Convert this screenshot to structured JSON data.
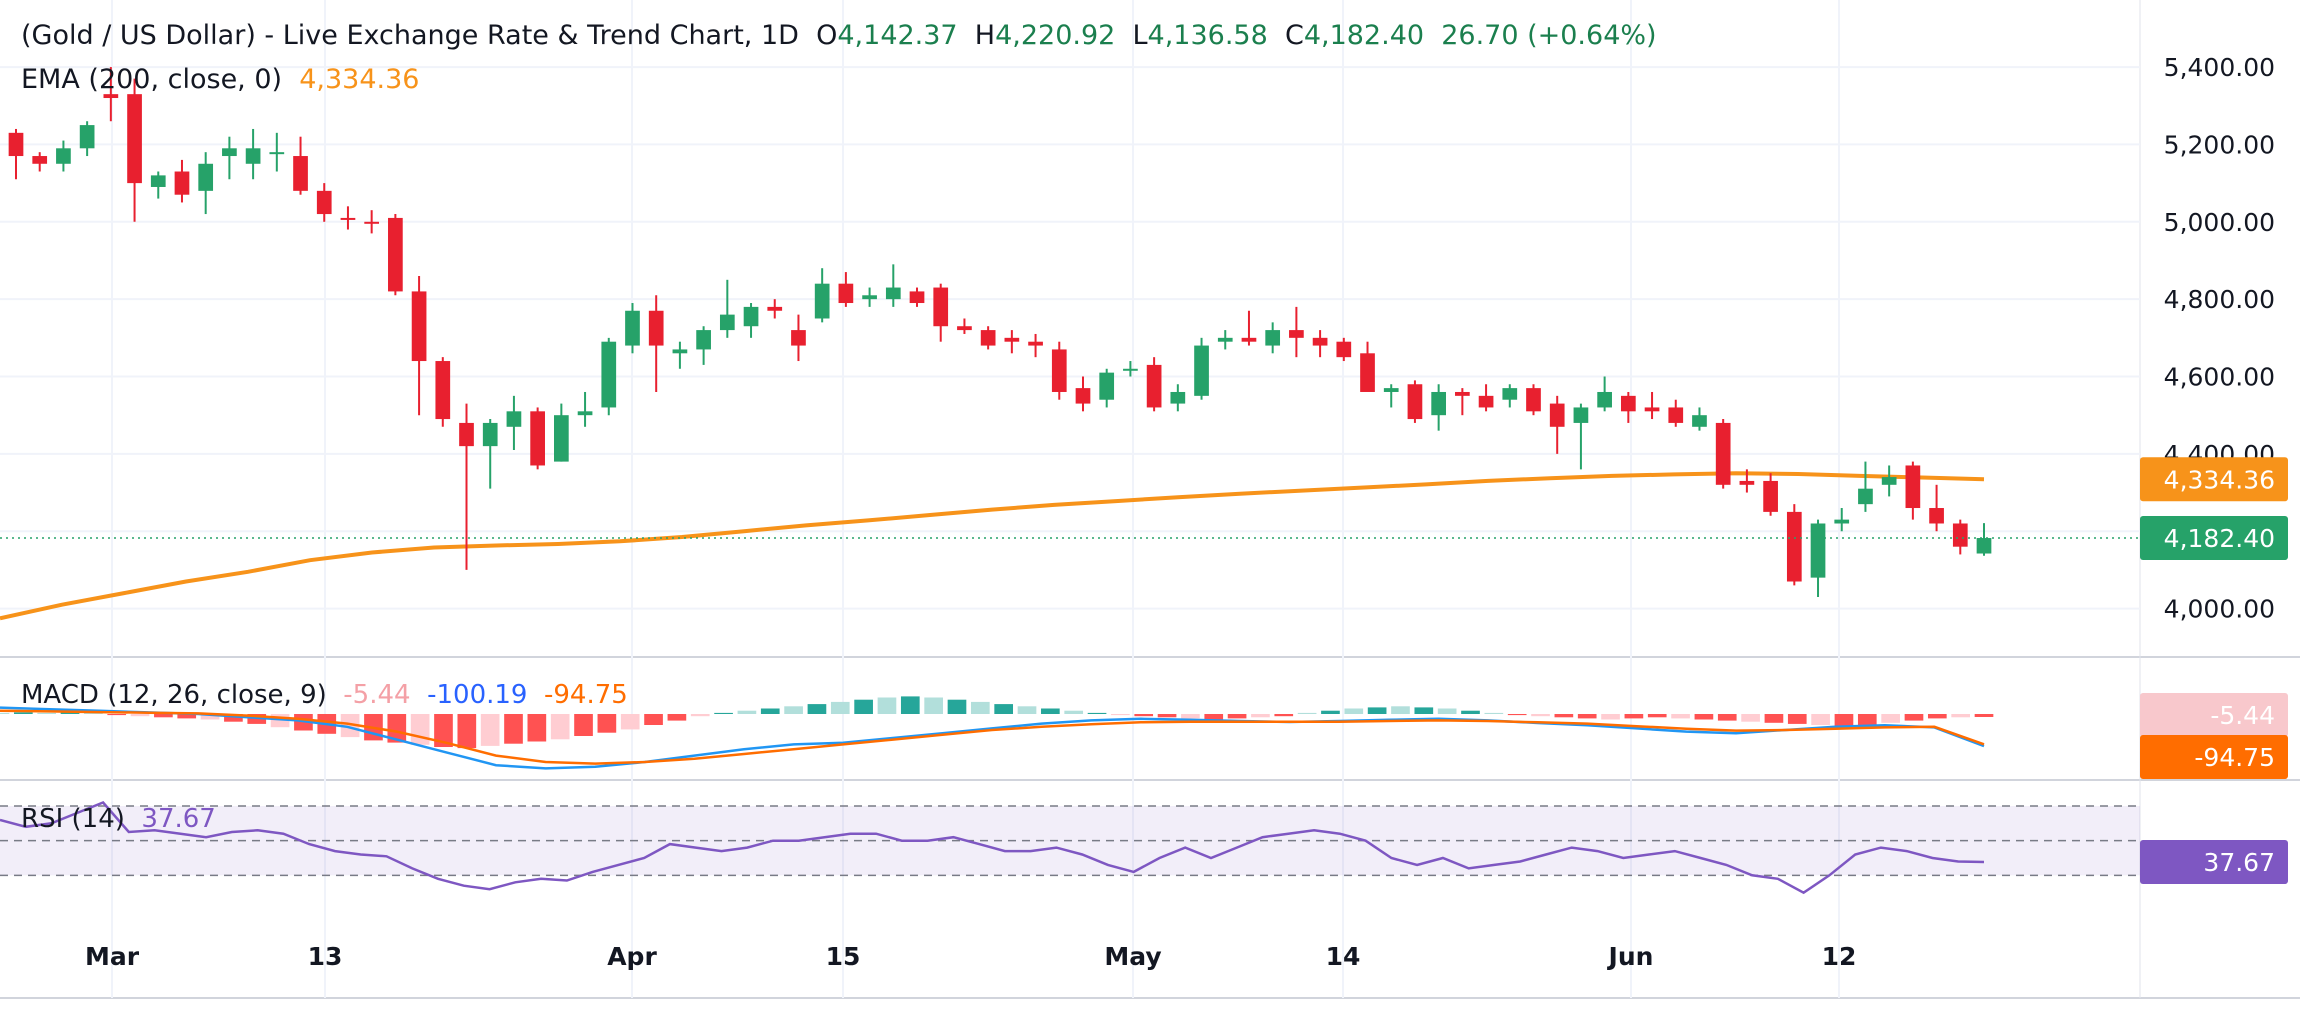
{
  "header": {
    "symbol": "(Gold / US Dollar) - Live Exchange Rate & Trend Chart, 1D",
    "o_label": "O",
    "o_value": "4,142.37",
    "h_label": "H",
    "h_value": "4,220.92",
    "l_label": "L",
    "l_value": "4,136.58",
    "c_label": "C",
    "c_value": "4,182.40",
    "change": "26.70 (+0.64%)"
  },
  "ema_legend": {
    "label": "EMA (200, close, 0)",
    "value": "4,334.36"
  },
  "macd_legend": {
    "label": "MACD (12, 26, close, 9)",
    "hist": "-5.44",
    "macd": "-100.19",
    "signal": "-94.75"
  },
  "rsi_legend": {
    "label": "RSI (14)",
    "value": "37.67"
  },
  "price_labels": {
    "ema": "4,334.36",
    "close": "4,182.40"
  },
  "macd_labels": {
    "hist": "-5.44",
    "signal": "-94.75"
  },
  "rsi_label": "37.67",
  "colors": {
    "up": "#26a269",
    "down": "#e8202f",
    "ema": "#f7931a",
    "macd": "#2196f3",
    "signal": "#ff6d00",
    "rsi": "#7e57c2"
  },
  "chart_data": {
    "type": "candlestick",
    "price_axis": {
      "range": [
        3880,
        5470
      ],
      "ticks": [
        "4,000.00",
        "4,200.00",
        "4,400.00",
        "4,600.00",
        "4,800.00",
        "5,000.00",
        "5,200.00",
        "5,400.00"
      ],
      "tick_values": [
        4000,
        4200,
        4400,
        4600,
        4800,
        5000,
        5200,
        5400
      ]
    },
    "x_ticks": [
      "Mar",
      "13",
      "Apr",
      "15",
      "May",
      "14",
      "Jun",
      "12"
    ],
    "x_tick_index": [
      3,
      12,
      23,
      32,
      42,
      51,
      61,
      70
    ],
    "candles": [
      {
        "o": 5230,
        "h": 5240,
        "l": 5110,
        "c": 5170
      },
      {
        "o": 5170,
        "h": 5180,
        "l": 5130,
        "c": 5150
      },
      {
        "o": 5150,
        "h": 5210,
        "l": 5130,
        "c": 5190
      },
      {
        "o": 5190,
        "h": 5260,
        "l": 5170,
        "c": 5250
      },
      {
        "o": 5330,
        "h": 5400,
        "l": 5260,
        "c": 5320
      },
      {
        "o": 5330,
        "h": 5370,
        "l": 5000,
        "c": 5100
      },
      {
        "o": 5090,
        "h": 5130,
        "l": 5060,
        "c": 5120
      },
      {
        "o": 5130,
        "h": 5160,
        "l": 5050,
        "c": 5070
      },
      {
        "o": 5080,
        "h": 5180,
        "l": 5020,
        "c": 5150
      },
      {
        "o": 5170,
        "h": 5220,
        "l": 5110,
        "c": 5190
      },
      {
        "o": 5150,
        "h": 5240,
        "l": 5110,
        "c": 5190
      },
      {
        "o": 5180,
        "h": 5230,
        "l": 5130,
        "c": 5180
      },
      {
        "o": 5170,
        "h": 5220,
        "l": 5070,
        "c": 5080
      },
      {
        "o": 5080,
        "h": 5100,
        "l": 5000,
        "c": 5020
      },
      {
        "o": 5010,
        "h": 5040,
        "l": 4980,
        "c": 5005
      },
      {
        "o": 5000,
        "h": 5030,
        "l": 4970,
        "c": 4995
      },
      {
        "o": 5010,
        "h": 5020,
        "l": 4810,
        "c": 4820
      },
      {
        "o": 4820,
        "h": 4860,
        "l": 4500,
        "c": 4640
      },
      {
        "o": 4640,
        "h": 4650,
        "l": 4470,
        "c": 4490
      },
      {
        "o": 4480,
        "h": 4530,
        "l": 4100,
        "c": 4420
      },
      {
        "o": 4420,
        "h": 4490,
        "l": 4310,
        "c": 4480
      },
      {
        "o": 4470,
        "h": 4550,
        "l": 4410,
        "c": 4510
      },
      {
        "o": 4510,
        "h": 4520,
        "l": 4360,
        "c": 4370
      },
      {
        "o": 4380,
        "h": 4530,
        "l": 4380,
        "c": 4500
      },
      {
        "o": 4500,
        "h": 4560,
        "l": 4470,
        "c": 4510
      },
      {
        "o": 4520,
        "h": 4700,
        "l": 4500,
        "c": 4690
      },
      {
        "o": 4680,
        "h": 4790,
        "l": 4660,
        "c": 4770
      },
      {
        "o": 4770,
        "h": 4810,
        "l": 4560,
        "c": 4680
      },
      {
        "o": 4660,
        "h": 4690,
        "l": 4620,
        "c": 4670
      },
      {
        "o": 4670,
        "h": 4730,
        "l": 4630,
        "c": 4720
      },
      {
        "o": 4720,
        "h": 4850,
        "l": 4700,
        "c": 4760
      },
      {
        "o": 4730,
        "h": 4790,
        "l": 4700,
        "c": 4780
      },
      {
        "o": 4780,
        "h": 4800,
        "l": 4750,
        "c": 4770
      },
      {
        "o": 4720,
        "h": 4760,
        "l": 4640,
        "c": 4680
      },
      {
        "o": 4750,
        "h": 4880,
        "l": 4740,
        "c": 4840
      },
      {
        "o": 4840,
        "h": 4870,
        "l": 4780,
        "c": 4790
      },
      {
        "o": 4800,
        "h": 4830,
        "l": 4780,
        "c": 4810
      },
      {
        "o": 4800,
        "h": 4890,
        "l": 4780,
        "c": 4830
      },
      {
        "o": 4820,
        "h": 4830,
        "l": 4780,
        "c": 4790
      },
      {
        "o": 4830,
        "h": 4840,
        "l": 4690,
        "c": 4730
      }
    ],
    "candles_b": [
      {
        "o": 4730,
        "h": 4750,
        "l": 4710,
        "c": 4720
      },
      {
        "o": 4720,
        "h": 4730,
        "l": 4670,
        "c": 4680
      },
      {
        "o": 4700,
        "h": 4720,
        "l": 4660,
        "c": 4690
      },
      {
        "o": 4690,
        "h": 4710,
        "l": 4650,
        "c": 4680
      },
      {
        "o": 4670,
        "h": 4690,
        "l": 4540,
        "c": 4560
      },
      {
        "o": 4570,
        "h": 4600,
        "l": 4510,
        "c": 4530
      },
      {
        "o": 4540,
        "h": 4620,
        "l": 4520,
        "c": 4610
      },
      {
        "o": 4620,
        "h": 4640,
        "l": 4600,
        "c": 4620
      },
      {
        "o": 4630,
        "h": 4650,
        "l": 4510,
        "c": 4520
      },
      {
        "o": 4530,
        "h": 4580,
        "l": 4510,
        "c": 4560
      },
      {
        "o": 4550,
        "h": 4700,
        "l": 4540,
        "c": 4680
      },
      {
        "o": 4690,
        "h": 4720,
        "l": 4670,
        "c": 4700
      },
      {
        "o": 4700,
        "h": 4770,
        "l": 4680,
        "c": 4690
      },
      {
        "o": 4680,
        "h": 4740,
        "l": 4660,
        "c": 4720
      },
      {
        "o": 4720,
        "h": 4780,
        "l": 4650,
        "c": 4700
      },
      {
        "o": 4700,
        "h": 4720,
        "l": 4650,
        "c": 4680
      },
      {
        "o": 4690,
        "h": 4700,
        "l": 4640,
        "c": 4650
      },
      {
        "o": 4660,
        "h": 4690,
        "l": 4570,
        "c": 4560
      },
      {
        "o": 4560,
        "h": 4580,
        "l": 4520,
        "c": 4570
      },
      {
        "o": 4580,
        "h": 4590,
        "l": 4480,
        "c": 4490
      },
      {
        "o": 4500,
        "h": 4580,
        "l": 4460,
        "c": 4560
      },
      {
        "o": 4560,
        "h": 4570,
        "l": 4500,
        "c": 4550
      },
      {
        "o": 4550,
        "h": 4580,
        "l": 4510,
        "c": 4520
      },
      {
        "o": 4540,
        "h": 4580,
        "l": 4520,
        "c": 4570
      },
      {
        "o": 4570,
        "h": 4580,
        "l": 4500,
        "c": 4510
      },
      {
        "o": 4530,
        "h": 4550,
        "l": 4400,
        "c": 4470
      },
      {
        "o": 4480,
        "h": 4530,
        "l": 4360,
        "c": 4520
      },
      {
        "o": 4520,
        "h": 4600,
        "l": 4510,
        "c": 4560
      },
      {
        "o": 4550,
        "h": 4560,
        "l": 4480,
        "c": 4510
      },
      {
        "o": 4520,
        "h": 4560,
        "l": 4490,
        "c": 4510
      },
      {
        "o": 4520,
        "h": 4540,
        "l": 4470,
        "c": 4480
      },
      {
        "o": 4470,
        "h": 4520,
        "l": 4460,
        "c": 4500
      },
      {
        "o": 4480,
        "h": 4490,
        "l": 4310,
        "c": 4320
      },
      {
        "o": 4330,
        "h": 4360,
        "l": 4300,
        "c": 4320
      },
      {
        "o": 4330,
        "h": 4350,
        "l": 4240,
        "c": 4250
      },
      {
        "o": 4250,
        "h": 4270,
        "l": 4060,
        "c": 4070
      },
      {
        "o": 4080,
        "h": 4230,
        "l": 4030,
        "c": 4220
      },
      {
        "o": 4220,
        "h": 4260,
        "l": 4200,
        "c": 4230
      },
      {
        "o": 4270,
        "h": 4380,
        "l": 4250,
        "c": 4310
      },
      {
        "o": 4320,
        "h": 4370,
        "l": 4290,
        "c": 4340
      },
      {
        "o": 4370,
        "h": 4380,
        "l": 4230,
        "c": 4260
      },
      {
        "o": 4260,
        "h": 4320,
        "l": 4200,
        "c": 4220
      },
      {
        "o": 4220,
        "h": 4230,
        "l": 4140,
        "c": 4160
      },
      {
        "o": 4142.37,
        "h": 4220.92,
        "l": 4136.58,
        "c": 4182.4
      }
    ],
    "ema": [
      3975,
      4010,
      4040,
      4070,
      4095,
      4125,
      4145,
      4158,
      4163,
      4167,
      4174,
      4185,
      4200,
      4215,
      4228,
      4242,
      4256,
      4268,
      4278,
      4288,
      4297,
      4305,
      4313,
      4321,
      4330,
      4337,
      4343,
      4347,
      4350,
      4348,
      4343,
      4339,
      4334.36
    ],
    "macd_hist": [
      2,
      3,
      2,
      4,
      2,
      -2,
      -4,
      -6,
      -8,
      -10,
      -14,
      -18,
      -24,
      -30,
      -36,
      -42,
      -48,
      -52,
      -56,
      -60,
      -62,
      -58,
      -54,
      -50,
      -46,
      -40,
      -34,
      -28,
      -20,
      -12,
      -4,
      2,
      6,
      10,
      14,
      18,
      22,
      26,
      30,
      32,
      30,
      26,
      22,
      18,
      14,
      10,
      6,
      2,
      -2,
      -4,
      -6,
      -8,
      -10,
      -8,
      -6,
      -4,
      2,
      6,
      10,
      12,
      14,
      12,
      10,
      6,
      2,
      -2,
      -4,
      -6,
      -8,
      -10,
      -8,
      -6,
      -8,
      -10,
      -12,
      -14,
      -16,
      -18,
      -20,
      -22,
      -20,
      -16,
      -12,
      -8,
      -6,
      -5.44
    ],
    "macd_line": [
      20,
      15,
      10,
      5,
      0,
      -10,
      -20,
      -40,
      -80,
      -120,
      -160,
      -170,
      -165,
      -150,
      -130,
      -110,
      -95,
      -90,
      -75,
      -60,
      -45,
      -30,
      -20,
      -15,
      -18,
      -22,
      -25,
      -22,
      -18,
      -15,
      -20,
      -28,
      -35,
      -45,
      -55,
      -60,
      -50,
      -40,
      -35,
      -42,
      -100.19
    ],
    "macd_signal": [
      10,
      8,
      6,
      4,
      2,
      -5,
      -15,
      -30,
      -55,
      -90,
      -130,
      -150,
      -155,
      -150,
      -140,
      -125,
      -110,
      -95,
      -80,
      -65,
      -50,
      -40,
      -32,
      -26,
      -24,
      -24,
      -24,
      -24,
      -22,
      -20,
      -22,
      -26,
      -30,
      -38,
      -46,
      -52,
      -50,
      -46,
      -42,
      -40,
      -94.75
    ],
    "rsi_levels": [
      70,
      50,
      30
    ],
    "rsi": [
      62,
      58,
      60,
      66,
      72,
      55,
      56,
      54,
      52,
      55,
      56,
      54,
      48,
      44,
      42,
      41,
      34,
      28,
      24,
      22,
      26,
      28,
      27,
      32,
      36,
      40,
      48,
      46,
      44,
      46,
      50,
      50,
      52,
      54,
      54,
      50,
      50,
      52,
      48,
      44,
      44,
      46,
      42,
      36,
      32,
      40,
      46,
      40,
      46,
      52,
      54,
      56,
      54,
      50,
      40,
      36,
      40,
      34,
      36,
      38,
      42,
      46,
      44,
      40,
      42,
      44,
      40,
      36,
      30,
      28,
      20,
      30,
      42,
      46,
      44,
      40,
      38,
      37.67
    ]
  }
}
